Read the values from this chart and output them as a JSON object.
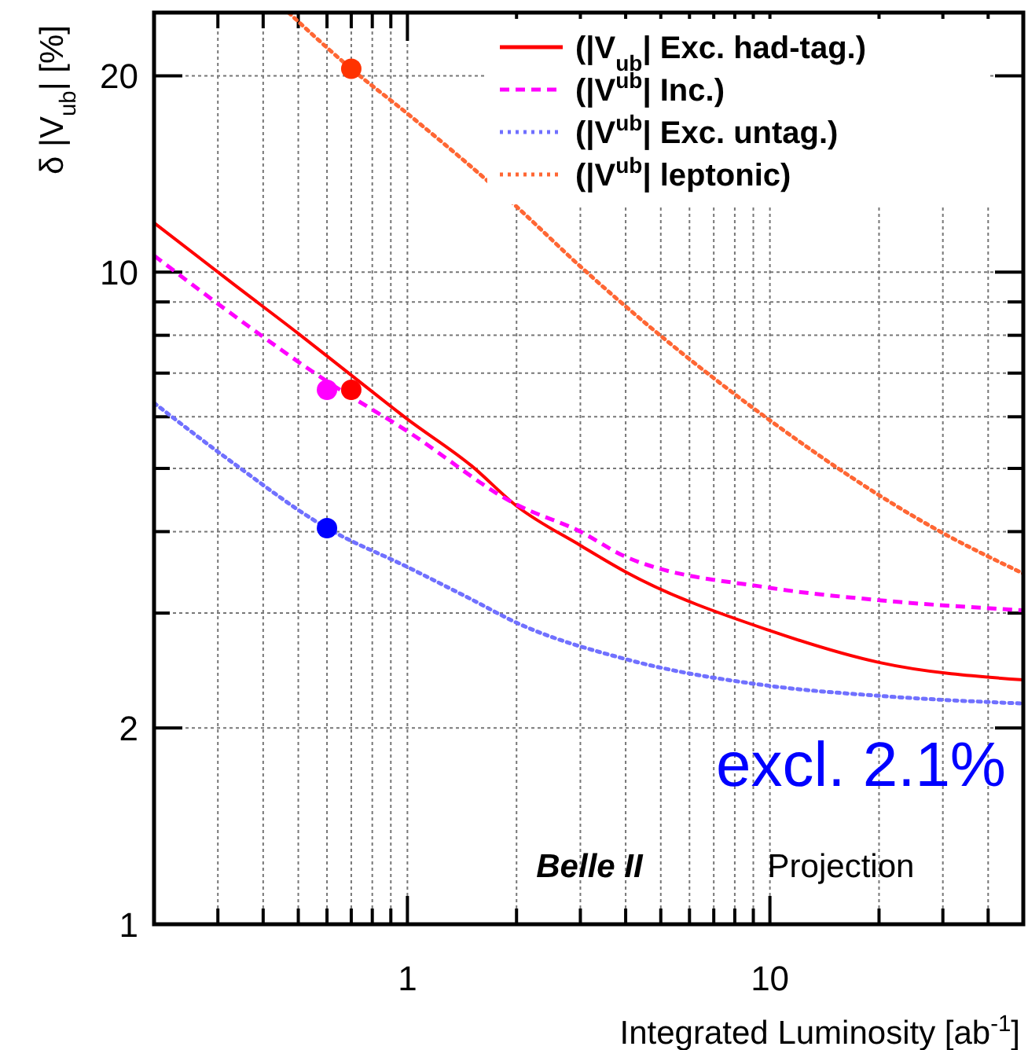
{
  "chart_data": {
    "type": "line",
    "xlabel": "Integrated Luminosity [ab$^{-1}$]",
    "ylabel": "δ |V$_{ub}$| [%]",
    "log": "xy",
    "grid": true,
    "legend": "top right",
    "xlim": [
      0.2,
      50
    ],
    "ylim": [
      1,
      25
    ],
    "xticks": [
      {
        "value": 0.3,
        "label": null
      },
      {
        "value": 0.4,
        "label": null
      },
      {
        "value": 0.5,
        "label": null
      },
      {
        "value": 0.6,
        "label": null
      },
      {
        "value": 0.7,
        "label": null
      },
      {
        "value": 0.8,
        "label": null
      },
      {
        "value": 0.9,
        "label": null
      },
      1,
      {
        "value": 2,
        "label": null
      },
      {
        "value": 3,
        "label": null
      },
      {
        "value": 4,
        "label": null
      },
      {
        "value": 5,
        "label": null
      },
      {
        "value": 6,
        "label": null
      },
      {
        "value": 7,
        "label": null
      },
      {
        "value": 8,
        "label": null
      },
      {
        "value": 9,
        "label": null
      },
      10,
      {
        "value": 20,
        "label": null
      },
      {
        "value": 30,
        "label": null
      },
      {
        "value": 40,
        "label": null
      }
    ],
    "yticks": [
      1,
      2,
      {
        "value": 3,
        "label": null
      },
      {
        "value": 4,
        "label": null
      },
      {
        "value": 5,
        "label": null
      },
      {
        "value": 6,
        "label": null
      },
      {
        "value": 7,
        "label": null
      },
      {
        "value": 8,
        "label": null
      },
      {
        "value": 9,
        "label": null
      },
      10,
      20
    ],
    "series": [
      {
        "name": "(|V$_{ub}$| Exc. had-tag.)",
        "color": "#ff0000",
        "line_style": "solid",
        "x": [
          0.2,
          0.33,
          0.5,
          0.7,
          1,
          1.5,
          2,
          3,
          4,
          10,
          20,
          50
        ],
        "values": [
          11.9,
          9.6,
          8.05,
          6.95,
          5.95,
          5.05,
          4.38,
          3.81,
          3.47,
          2.82,
          2.52,
          2.37
        ]
      },
      {
        "name": "(|V$^{ub}$| Inc.)",
        "color": "#ff00ff",
        "line_style": "dashed",
        "x": [
          0.2,
          0.33,
          0.6,
          1,
          2,
          3,
          4,
          10,
          20,
          50
        ],
        "values": [
          10.6,
          8.6,
          6.8,
          5.7,
          4.4,
          4.0,
          3.66,
          3.28,
          3.14,
          3.03
        ]
      },
      {
        "name": "(|V$^{ub}$| Exc. untag.)",
        "color": "#7070ff",
        "line_style": "dotted",
        "x": [
          0.2,
          0.33,
          0.6,
          1,
          1.5,
          2,
          4,
          10,
          20,
          50
        ],
        "values": [
          6.3,
          5.1,
          4.05,
          3.53,
          3.15,
          2.9,
          2.55,
          2.32,
          2.24,
          2.18
        ]
      },
      {
        "name": "(|V$^{ub}$| leptonic)",
        "color": "#ff6633",
        "line_style": "dotted",
        "x": [
          0.47,
          0.7,
          1,
          2,
          3,
          9.5,
          30,
          50
        ],
        "values": [
          25,
          20.5,
          17.5,
          12.6,
          10.2,
          6.05,
          3.98,
          3.45
        ]
      },
      {
        "type": "scatter",
        "marker": "circle",
        "color": "#ff3300",
        "x": [
          0.7
        ],
        "values": [
          20.5
        ]
      },
      {
        "type": "scatter",
        "marker": "circle",
        "color": "#ff0000",
        "x": [
          0.7
        ],
        "values": [
          6.6
        ]
      },
      {
        "type": "scatter",
        "marker": "circle",
        "color": "#ff00ff",
        "x": [
          0.6
        ],
        "values": [
          6.6
        ]
      },
      {
        "type": "scatter",
        "marker": "circle",
        "color": "#0000ff",
        "x": [
          0.6
        ],
        "values": [
          4.05
        ]
      }
    ],
    "annotations": [
      "excl. 2.1%",
      "Belle II",
      "Projection"
    ]
  }
}
